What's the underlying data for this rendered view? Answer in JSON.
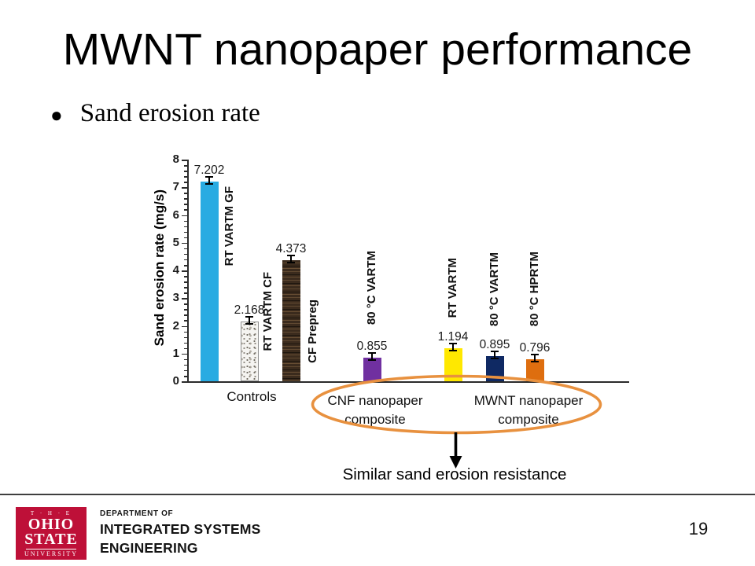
{
  "slide": {
    "title": "MWNT nanopaper performance",
    "bullet": "Sand erosion rate",
    "page_number": "19"
  },
  "chart_data": {
    "type": "bar",
    "title": "",
    "xlabel": "",
    "ylabel": "Sand erosion rate (mg/s)",
    "ylim": [
      0,
      8
    ],
    "y_major_ticks": [
      0,
      1,
      2,
      3,
      4,
      5,
      6,
      7,
      8
    ],
    "y_minor_step": 0.2,
    "grid": "off",
    "legend": "none",
    "bars": [
      {
        "label": "RT VARTM GF",
        "value": 7.202,
        "display": "7.202",
        "color": "#29abe2",
        "pattern": "solid",
        "group": "Controls"
      },
      {
        "label": "RT VARTM CF",
        "value": 2.168,
        "display": "2.168",
        "color": "#f5f4f1",
        "pattern": "speckle",
        "group": "Controls"
      },
      {
        "label": "CF Prepreg",
        "value": 4.373,
        "display": "4.373",
        "color": "#3b2b1d",
        "pattern": "woodgrain",
        "group": "Controls"
      },
      {
        "label": "80 °C VARTM",
        "value": 0.855,
        "display": "0.855",
        "color": "#7030a0",
        "pattern": "solid",
        "group": "CNF nanopaper composite"
      },
      {
        "label": "RT VARTM",
        "value": 1.194,
        "display": "1.194",
        "color": "#ffe800",
        "pattern": "solid",
        "group": "MWNT nanopaper composite"
      },
      {
        "label": "80 °C VARTM",
        "value": 0.895,
        "display": "0.895",
        "color": "#0f2963",
        "pattern": "solid",
        "group": "MWNT nanopaper composite"
      },
      {
        "label": "80 °C HPRTM",
        "value": 0.796,
        "display": "0.796",
        "color": "#de6e0f",
        "pattern": "solid",
        "group": "MWNT nanopaper composite"
      }
    ],
    "group_labels": [
      "Controls",
      "CNF nanopaper composite",
      "MWNT nanopaper composite"
    ],
    "annotation": "Similar sand erosion resistance",
    "ellipse_color": "#e8913f",
    "error_bars": true
  },
  "footer": {
    "logo": {
      "the": "T · H · E",
      "ohio": "OHIO",
      "state": "STATE",
      "university": "UNIVERSITY",
      "brand_color": "#be1038"
    },
    "department_of": "DEPARTMENT OF",
    "department_line1": "INTEGRATED SYSTEMS",
    "department_line2": "ENGINEERING"
  }
}
